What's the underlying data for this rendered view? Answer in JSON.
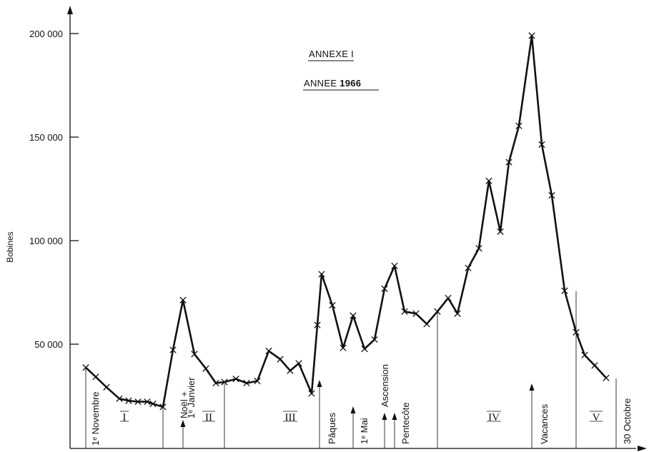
{
  "chart_data": {
    "type": "line",
    "title_line1": "ANNEXE  I",
    "title_line2_prefix": "ANNEE ",
    "title_line2_year": "1966",
    "xlabel": "",
    "ylabel": "Bobines",
    "ylim": [
      0,
      200000
    ],
    "y_ticks": [
      {
        "value": 50000,
        "label": "50 000"
      },
      {
        "value": 100000,
        "label": "100 000"
      },
      {
        "value": 150000,
        "label": "150 000"
      },
      {
        "value": 200000,
        "label": "200 000"
      }
    ],
    "grid": false,
    "x": [
      0,
      1,
      2,
      3,
      4,
      5,
      6,
      7,
      8,
      9,
      10,
      11,
      12,
      13,
      14,
      15,
      16,
      17,
      18,
      19,
      20,
      21,
      22,
      23,
      24,
      25,
      26,
      27,
      28,
      29,
      30,
      31,
      32,
      33,
      34,
      35,
      36,
      37,
      38,
      39,
      40,
      41,
      42,
      43,
      44,
      45,
      46,
      47,
      48,
      49,
      50,
      51
    ],
    "values": [
      39000,
      34500,
      29500,
      24000,
      23000,
      22500,
      22500,
      21500,
      20000,
      47500,
      71500,
      45500,
      38500,
      31500,
      32000,
      33500,
      31500,
      32500,
      47000,
      43000,
      37500,
      41000,
      26500,
      59500,
      84000,
      69000,
      48500,
      64000,
      48000,
      52500,
      77000,
      88000,
      66000,
      65000,
      60000,
      66000,
      72500,
      65000,
      87000,
      96500,
      129000,
      104500,
      138000,
      155500,
      199000,
      146500,
      122000,
      76000,
      56000,
      45000,
      40000,
      34000
    ],
    "annotations": {
      "event_labels": [
        "1ᵉ Novembre",
        "Noël +",
        "1ᵉ Janvier",
        "Pâques",
        "1ᵉ Mai",
        "Ascension",
        "Pentecôte",
        "Vacances",
        "30 Octobre"
      ],
      "periods": [
        "I",
        "II",
        "III",
        "IV",
        "V"
      ]
    }
  }
}
